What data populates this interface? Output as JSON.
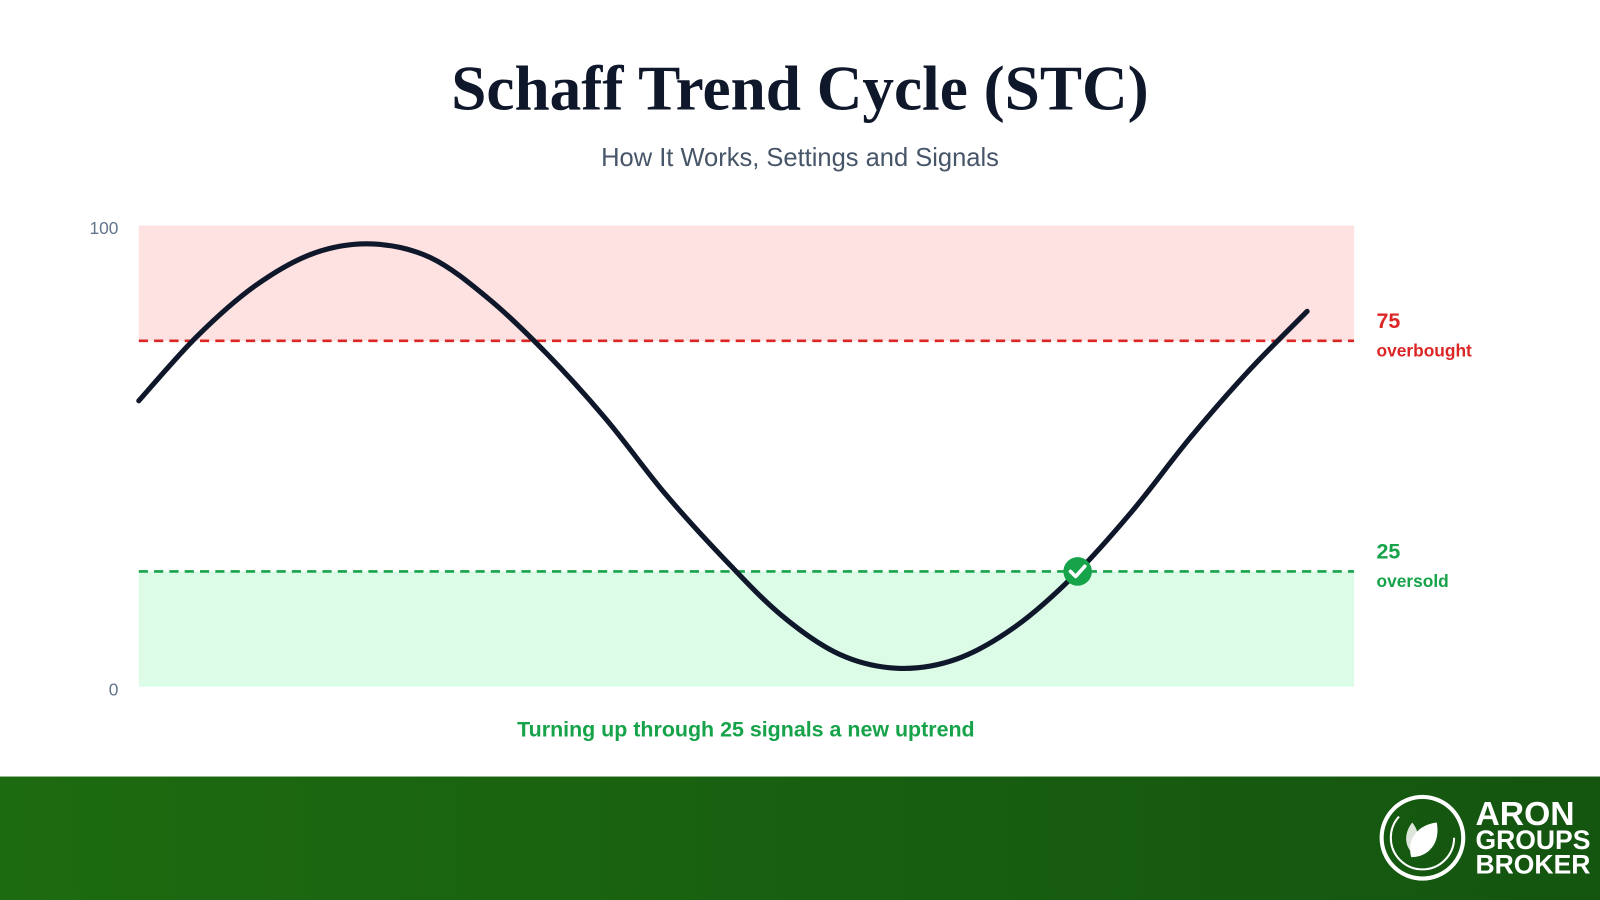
{
  "chart_data": {
    "type": "line",
    "title": "Schaff Trend Cycle (STC)",
    "subtitle": "How It Works, Settings and Signals",
    "values": [
      62,
      76,
      87,
      94,
      96,
      93,
      84,
      72,
      58,
      42,
      28,
      15.5,
      7,
      4,
      6,
      13,
      24,
      38,
      54,
      68.5,
      81.4
    ],
    "color": "#0f172a",
    "ylim": [
      0,
      100
    ],
    "yticks": [
      0,
      100
    ],
    "thresholds": [
      {
        "value": 75,
        "label": "overbought",
        "color": "#dc2626",
        "zone": [
          75,
          100
        ],
        "zone_color": "#fee2e2"
      },
      {
        "value": 25,
        "label": "oversold",
        "color": "#16a34a",
        "zone": [
          0,
          25
        ],
        "zone_color": "#dcfce7"
      }
    ],
    "signal": {
      "value": 25,
      "text": "Turning up through 25 signals a new uptrend",
      "color": "#16a34a"
    }
  },
  "footer": {
    "logo": [
      "ARON",
      "GROUPS",
      "BROKER"
    ]
  }
}
